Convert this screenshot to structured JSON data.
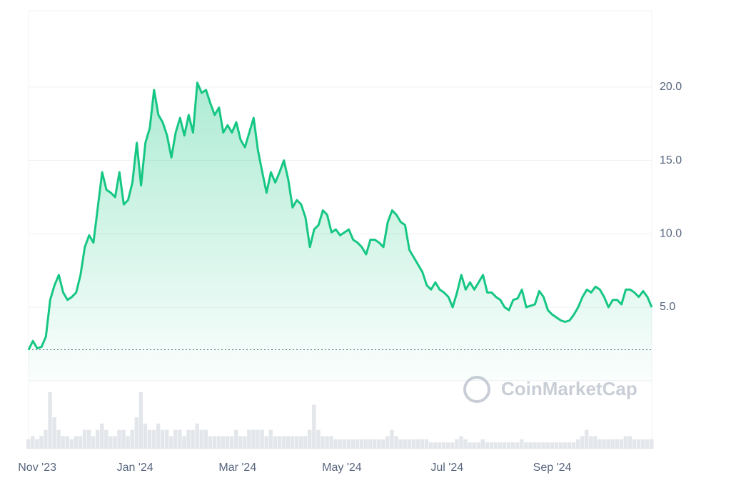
{
  "chart_data": {
    "type": "area",
    "color": "#16c784",
    "baseline": 2.1,
    "watermark": "CoinMarketCap",
    "values": [
      2.1,
      2.7,
      2.2,
      2.3,
      3.0,
      5.5,
      6.5,
      7.2,
      6.0,
      5.5,
      5.7,
      6.0,
      7.2,
      9.1,
      9.9,
      9.4,
      11.8,
      14.2,
      13.0,
      12.8,
      12.5,
      14.2,
      12.0,
      12.3,
      13.5,
      16.2,
      13.3,
      16.2,
      17.2,
      19.8,
      18.1,
      17.6,
      16.7,
      15.2,
      16.9,
      17.9,
      16.7,
      18.1,
      16.9,
      20.3,
      19.6,
      19.8,
      18.9,
      18.1,
      18.6,
      16.9,
      17.4,
      16.9,
      17.6,
      16.4,
      15.9,
      16.9,
      17.9,
      15.7,
      14.2,
      12.8,
      14.2,
      13.5,
      14.2,
      15.0,
      13.7,
      11.8,
      12.3,
      12.0,
      11.1,
      9.1,
      10.3,
      10.6,
      11.6,
      11.3,
      10.1,
      10.3,
      9.9,
      10.1,
      10.3,
      9.6,
      9.4,
      9.1,
      8.6,
      9.6,
      9.6,
      9.4,
      9.1,
      10.8,
      11.6,
      11.3,
      10.8,
      10.6,
      8.9,
      8.4,
      7.9,
      7.4,
      6.5,
      6.2,
      6.7,
      6.2,
      6.0,
      5.7,
      5.0,
      6.0,
      7.2,
      6.2,
      6.7,
      6.2,
      6.7,
      7.2,
      6.0,
      6.0,
      5.7,
      5.5,
      5.0,
      4.8,
      5.5,
      5.6,
      6.2,
      5.0,
      5.1,
      5.2,
      6.1,
      5.7,
      4.8,
      4.5,
      4.3,
      4.1,
      4.0,
      4.1,
      4.5,
      5.0,
      5.7,
      6.2,
      6.0,
      6.4,
      6.2,
      5.7,
      5.0,
      5.5,
      5.5,
      5.2,
      6.2,
      6.2,
      6.0,
      5.7,
      6.1,
      5.7,
      5.0
    ],
    "volume": {
      "color": "#e3e6ea",
      "ylim": [
        0,
        10
      ],
      "values": [
        1.5,
        2,
        1.5,
        2,
        3,
        9,
        5,
        3,
        2,
        2,
        1.5,
        2,
        2,
        3,
        3,
        2,
        3,
        4,
        3,
        2,
        2,
        3,
        3,
        2,
        3,
        5,
        9,
        4,
        3,
        3,
        4,
        3,
        3,
        2,
        3,
        3,
        2,
        3,
        3,
        4,
        3,
        3,
        2,
        2,
        2,
        2,
        2,
        2,
        3,
        2,
        2,
        3,
        3,
        3,
        3,
        2,
        3,
        2,
        2,
        2,
        2,
        2,
        2,
        2,
        2,
        3,
        7,
        3,
        2,
        2,
        2,
        1.5,
        1.5,
        1.5,
        1.5,
        1.5,
        1.5,
        1.5,
        1.5,
        1.5,
        1.5,
        1.5,
        1.5,
        2,
        3,
        2,
        1.5,
        1.5,
        1.5,
        1.5,
        1.5,
        1.5,
        1.5,
        1,
        1,
        1,
        1,
        1,
        1,
        1.5,
        2,
        1.5,
        1,
        1,
        1,
        1.5,
        1,
        1,
        1,
        1,
        1,
        1,
        1,
        1,
        1.5,
        1,
        1,
        1,
        1,
        1,
        1,
        1,
        1,
        1,
        1,
        1,
        1,
        1.5,
        2,
        3,
        2,
        2,
        1.5,
        1.5,
        1.5,
        1.5,
        1.5,
        1.5,
        2,
        2,
        1.5,
        1.5,
        1.5,
        1.5,
        1.5
      ]
    },
    "xlim": [
      0,
      144
    ],
    "xticks": [
      {
        "value": 2,
        "label": "Nov '23"
      },
      {
        "value": 24.6,
        "label": "Jan '24"
      },
      {
        "value": 48.3,
        "label": "Mar '24"
      },
      {
        "value": 72.4,
        "label": "May '24"
      },
      {
        "value": 96.7,
        "label": "Jul '24"
      },
      {
        "value": 121,
        "label": "Sep '24"
      }
    ],
    "ylim": [
      0,
      25.2
    ],
    "yticks": [
      {
        "value": 5,
        "label": "5.0"
      },
      {
        "value": 10,
        "label": "10.0"
      },
      {
        "value": 15,
        "label": "15.0"
      },
      {
        "value": 20,
        "label": "20.0"
      }
    ],
    "grid": true
  }
}
